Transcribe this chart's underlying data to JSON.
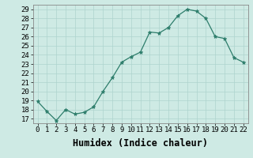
{
  "x": [
    0,
    1,
    2,
    3,
    4,
    5,
    6,
    7,
    8,
    9,
    10,
    11,
    12,
    13,
    14,
    15,
    16,
    17,
    18,
    19,
    20,
    21,
    22
  ],
  "y": [
    18.9,
    17.8,
    16.8,
    18.0,
    17.5,
    17.7,
    18.3,
    20.0,
    21.5,
    23.2,
    23.8,
    24.3,
    26.5,
    26.4,
    27.0,
    28.3,
    29.0,
    28.8,
    28.0,
    26.0,
    25.8,
    23.7,
    23.2
  ],
  "line_color": "#2d7d6b",
  "marker": "*",
  "marker_color": "#2d7d6b",
  "bg_color": "#ceeae4",
  "grid_color": "#aed4ce",
  "xlabel": "Humidex (Indice chaleur)",
  "ylim_min": 16.5,
  "ylim_max": 29.5,
  "xlim_min": -0.5,
  "xlim_max": 22.5,
  "yticks": [
    17,
    18,
    19,
    20,
    21,
    22,
    23,
    24,
    25,
    26,
    27,
    28,
    29
  ],
  "xticks": [
    0,
    1,
    2,
    3,
    4,
    5,
    6,
    7,
    8,
    9,
    10,
    11,
    12,
    13,
    14,
    15,
    16,
    17,
    18,
    19,
    20,
    21,
    22
  ],
  "tick_fontsize": 6.5,
  "xlabel_fontsize": 8.5,
  "spine_color": "#888888"
}
